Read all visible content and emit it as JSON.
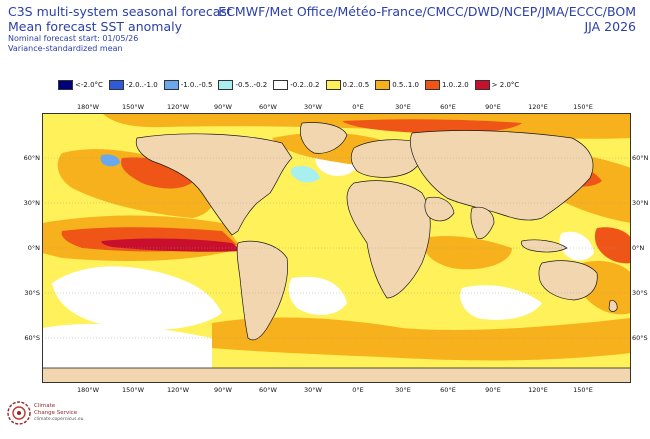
{
  "header": {
    "title_line1": "C3S multi-system seasonal forecast",
    "title_line2": "Mean forecast SST anomaly",
    "info_line1": "Nominal forecast start: 01/05/26",
    "info_line2": "Variance-standardized mean",
    "systems": "ECMWF/Met Office/Météo-France/CMCC/DWD/NCEP/JMA/ECCC/BOM",
    "period": "JJA 2026"
  },
  "legend": [
    {
      "label": "<-2.0°C",
      "color": "#00007a"
    },
    {
      "label": "-2.0..-1.0",
      "color": "#2f5bd8"
    },
    {
      "label": "-1.0..-0.5",
      "color": "#6aa8ee"
    },
    {
      "label": "-0.5..-0.2",
      "color": "#a8f0f0"
    },
    {
      "label": "-0.2..0.2",
      "color": "#ffffff"
    },
    {
      "label": "0.2..0.5",
      "color": "#fff15a"
    },
    {
      "label": "0.5..1.0",
      "color": "#f7b11c"
    },
    {
      "label": "1.0..2.0",
      "color": "#ee5516"
    },
    {
      "label": "> 2.0°C",
      "color": "#c8102e"
    }
  ],
  "map": {
    "lon_labels": [
      "180°W",
      "150°W",
      "120°W",
      "90°W",
      "60°W",
      "30°W",
      "0°E",
      "30°E",
      "60°E",
      "90°E",
      "120°E",
      "150°E"
    ],
    "lat_labels": [
      "60°N",
      "30°N",
      "0°N",
      "30°S",
      "60°S"
    ],
    "colors": {
      "land": "#f2d6b0",
      "coast": "#1a1a1a",
      "frame": "#333333",
      "anom_weak": "#fff15a",
      "anom_mod": "#f7b11c",
      "anom_strong": "#ee5516",
      "anom_extreme": "#c8102e",
      "anom_cold_weak": "#a8f0f0",
      "anom_cold_mod": "#6aa8ee"
    }
  },
  "footer": {
    "logo_line1": "Climate",
    "logo_line2": "Change Service",
    "logo_url": "climate.copernicus.eu"
  }
}
